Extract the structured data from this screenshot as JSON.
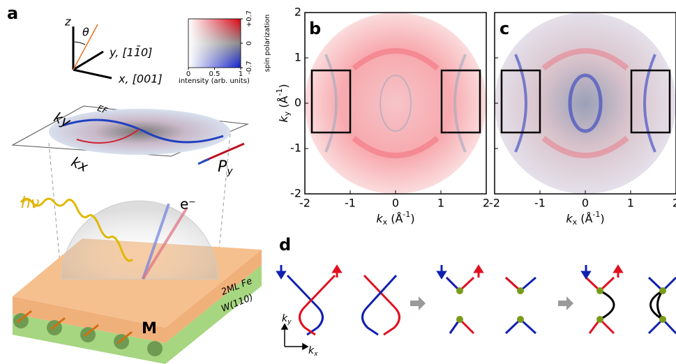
{
  "panel_a": {
    "label": "a",
    "z": "z",
    "theta": "θ",
    "y": "y, [11̄0]",
    "x": "x, [001]",
    "colorbar": {
      "right_ticks": [
        {
          "value": 0.7,
          "label": "+0.7"
        },
        0,
        -0.7
      ],
      "right_label": "spin polarization",
      "bottom_ticks": [
        0,
        0.5,
        1
      ],
      "bottom_label": "intensity (arb. units)"
    },
    "ef": "EF",
    "ky": "ky",
    "kx": "kx",
    "py": {
      "base": "P",
      "sub": "y"
    },
    "hnu": "hν",
    "electron": "e⁻",
    "layer_top": "2ML Fe",
    "layer_bottom": "W(110)",
    "magnetization": "M"
  },
  "maps": {
    "panels": [
      "b",
      "c"
    ],
    "xlim": [
      -2,
      2
    ],
    "ylim": [
      -2,
      2
    ],
    "xticks": [
      -2,
      -1,
      0,
      1,
      2
    ],
    "yticks": [
      -2,
      -1,
      0,
      1,
      2
    ],
    "xlabel": {
      "base": "k",
      "sub": "x",
      "unit": " (Å",
      "exp": "-1",
      "close": ")"
    },
    "ylabel": {
      "base": "k",
      "sub": "y",
      "unit": " (Å",
      "exp": "-1",
      "close": ")"
    }
  },
  "panel_d": {
    "label": "d",
    "ky": {
      "base": "k",
      "sub": "y"
    },
    "kx": {
      "base": "k",
      "sub": "x"
    }
  }
}
